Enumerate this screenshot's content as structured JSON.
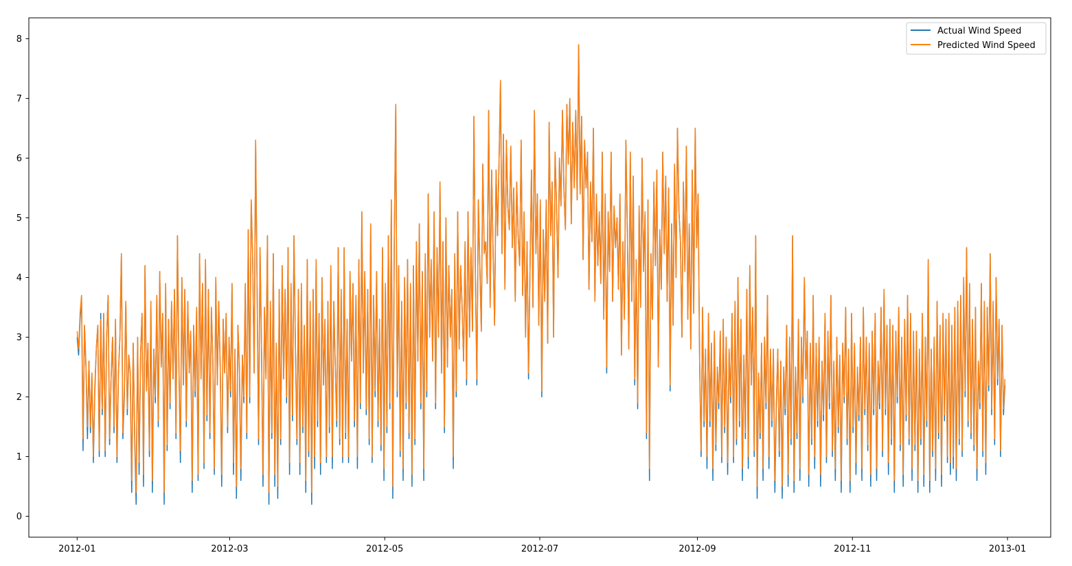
{
  "chart_data": {
    "type": "line",
    "title": "",
    "xlabel": "",
    "ylabel": "",
    "x_range": [
      "2011-12-13",
      "2013-01-18"
    ],
    "ylim": [
      -0.35,
      8.35
    ],
    "grid": false,
    "legend_position": "top-right",
    "x_ticks": [
      "2012-01",
      "2012-03",
      "2012-05",
      "2012-07",
      "2012-09",
      "2012-11",
      "2013-01"
    ],
    "y_ticks": [
      "0",
      "1",
      "2",
      "3",
      "4",
      "5",
      "6",
      "7",
      "8"
    ],
    "x_start": "2012-01-01",
    "x_end": "2012-12-31",
    "series": [
      {
        "name": "Actual Wind Speed",
        "color": "#1f77b4",
        "values": [
          3.0,
          2.7,
          3.3,
          3.7,
          1.1,
          3.2,
          2.5,
          1.3,
          2.6,
          1.4,
          2.4,
          0.9,
          2.1,
          2.8,
          3.2,
          1.0,
          3.4,
          1.7,
          3.4,
          1.0,
          3.0,
          3.7,
          1.2,
          2.3,
          3.0,
          1.4,
          3.3,
          0.9,
          2.4,
          3.0,
          4.4,
          1.3,
          2.0,
          3.6,
          1.7,
          2.7,
          2.4,
          0.4,
          2.9,
          1.3,
          0.2,
          3.0,
          0.7,
          2.7,
          3.4,
          0.5,
          4.2,
          2.1,
          2.9,
          1.0,
          3.6,
          0.4,
          2.8,
          1.9,
          3.7,
          1.5,
          4.1,
          2.5,
          3.4,
          0.2,
          3.9,
          1.1,
          3.3,
          1.8,
          3.6,
          2.3,
          3.8,
          1.3,
          4.7,
          2.5,
          0.9,
          4.0,
          2.2,
          3.8,
          1.5,
          3.6,
          2.4,
          3.1,
          0.4,
          3.2,
          2.0,
          3.5,
          0.6,
          4.4,
          2.3,
          3.9,
          0.8,
          4.3,
          1.6,
          3.8,
          1.3,
          3.5,
          2.6,
          0.7,
          4.0,
          2.2,
          3.6,
          2.5,
          0.5,
          3.3,
          2.4,
          3.4,
          1.4,
          3.0,
          2.0,
          3.9,
          0.7,
          2.8,
          0.3,
          3.2,
          2.5,
          0.6,
          2.7,
          1.9,
          3.9,
          1.3,
          4.8,
          1.9,
          5.3,
          4.3,
          2.4,
          6.3,
          3.8,
          1.2,
          4.5,
          2.8,
          0.5,
          3.5,
          2.3,
          4.7,
          0.2,
          3.6,
          1.3,
          4.4,
          0.5,
          2.9,
          0.3,
          3.8,
          1.2,
          4.2,
          2.3,
          3.8,
          1.9,
          4.5,
          0.7,
          3.9,
          1.6,
          4.7,
          2.8,
          1.2,
          3.8,
          0.7,
          3.9,
          1.4,
          3.2,
          0.4,
          4.3,
          1.0,
          3.6,
          0.2,
          3.8,
          0.8,
          4.3,
          1.5,
          3.4,
          0.7,
          4.0,
          2.2,
          3.3,
          0.9,
          3.6,
          1.4,
          4.2,
          0.8,
          3.6,
          2.5,
          1.5,
          4.5,
          1.2,
          3.8,
          0.9,
          4.5,
          1.3,
          3.3,
          0.9,
          4.1,
          2.6,
          3.9,
          1.5,
          3.7,
          0.8,
          4.3,
          1.8,
          5.1,
          2.4,
          4.1,
          1.7,
          3.8,
          1.2,
          4.9,
          0.9,
          3.7,
          2.0,
          4.1,
          1.5,
          3.3,
          1.1,
          4.5,
          0.6,
          3.9,
          1.4,
          4.7,
          1.8,
          5.3,
          0.3,
          4.6,
          6.9,
          2.0,
          4.2,
          1.0,
          3.6,
          0.6,
          4.0,
          1.8,
          4.3,
          1.3,
          3.9,
          0.5,
          4.2,
          1.2,
          4.6,
          2.6,
          4.9,
          1.8,
          4.1,
          0.6,
          4.4,
          2.0,
          5.4,
          3.0,
          4.3,
          2.6,
          5.1,
          1.8,
          4.5,
          3.0,
          5.6,
          2.4,
          4.6,
          1.4,
          5.0,
          2.5,
          4.2,
          3.0,
          3.8,
          0.8,
          4.4,
          2.0,
          5.1,
          2.8,
          4.2,
          3.5,
          2.6,
          4.6,
          2.2,
          5.1,
          3.0,
          4.5,
          3.1,
          6.7,
          4.0,
          2.2,
          5.3,
          4.2,
          3.1,
          5.9,
          4.4,
          4.6,
          3.9,
          6.8,
          3.5,
          5.8,
          4.4,
          3.2,
          5.8,
          4.7,
          5.9,
          7.3,
          4.4,
          6.4,
          3.8,
          6.3,
          5.2,
          4.8,
          6.2,
          4.5,
          5.5,
          3.6,
          5.6,
          4.7,
          4.2,
          6.3,
          3.7,
          5.1,
          3.0,
          4.6,
          2.3,
          4.1,
          5.8,
          3.5,
          6.8,
          4.4,
          5.4,
          3.2,
          5.3,
          2.0,
          4.8,
          3.6,
          5.3,
          2.9,
          6.6,
          4.7,
          5.6,
          3.0,
          6.1,
          5.2,
          4.0,
          6.0,
          5.2,
          6.8,
          5.5,
          4.8,
          6.9,
          5.9,
          7.0,
          4.9,
          6.6,
          5.5,
          6.8,
          5.3,
          7.9,
          5.4,
          6.7,
          4.3,
          6.3,
          5.5,
          6.1,
          3.8,
          5.6,
          4.6,
          6.5,
          3.6,
          5.4,
          4.2,
          5.1,
          3.9,
          6.1,
          3.3,
          5.4,
          2.4,
          5.1,
          4.1,
          6.1,
          3.6,
          5.2,
          4.5,
          5.0,
          3.8,
          5.4,
          2.7,
          4.6,
          3.3,
          6.3,
          4.8,
          2.8,
          6.1,
          3.6,
          5.7,
          2.2,
          4.3,
          1.8,
          5.2,
          3.5,
          6.0,
          4.1,
          5.1,
          1.3,
          5.3,
          0.6,
          4.4,
          3.3,
          5.6,
          4.2,
          5.8,
          2.5,
          4.8,
          3.8,
          6.1,
          4.4,
          5.7,
          3.6,
          5.5,
          2.1,
          4.9,
          3.2,
          5.9,
          4.0,
          6.5,
          5.1,
          4.6,
          3.0,
          5.6,
          4.1,
          6.2,
          3.3,
          4.9,
          2.8,
          5.8,
          3.4,
          6.5,
          4.5,
          5.4,
          2.6,
          1.0,
          3.5,
          1.5,
          2.8,
          0.8,
          3.4,
          1.5,
          2.9,
          0.6,
          3.1,
          1.1,
          2.5,
          1.8,
          3.1,
          0.9,
          3.3,
          1.4,
          3.0,
          0.7,
          2.8,
          1.9,
          3.4,
          0.9,
          3.6,
          1.2,
          4.0,
          1.5,
          3.3,
          0.6,
          2.7,
          1.3,
          3.8,
          0.8,
          4.2,
          2.2,
          3.5,
          1.0,
          4.7,
          0.3,
          2.4,
          1.3,
          2.9,
          0.6,
          3.0,
          1.8,
          3.7,
          0.8,
          2.8,
          1.5,
          2.8,
          0.4,
          1.8,
          2.8,
          1.0,
          2.6,
          0.3,
          2.5,
          1.7,
          3.2,
          0.5,
          3.0,
          1.2,
          4.7,
          0.4,
          2.5,
          1.3,
          3.3,
          0.6,
          3.0,
          1.9,
          4.0,
          2.3,
          3.1,
          0.5,
          2.9,
          1.2,
          3.7,
          0.8,
          2.9,
          1.5,
          3.0,
          0.5,
          2.6,
          1.6,
          3.4,
          0.9,
          3.1,
          1.8,
          3.7,
          1.0,
          2.6,
          0.6,
          3.0,
          1.4,
          2.7,
          0.4,
          2.9,
          1.9,
          3.5,
          1.2,
          2.8,
          0.4,
          3.4,
          1.4,
          2.9,
          0.7,
          2.5,
          1.6,
          3.0,
          0.6,
          3.5,
          1.7,
          3.0,
          1.1,
          2.9,
          0.5,
          3.1,
          1.7,
          3.4,
          0.6,
          2.6,
          1.8,
          3.5,
          1.0,
          3.8,
          1.7,
          3.2,
          0.7,
          3.3,
          1.2,
          3.2,
          0.4,
          3.1,
          1.9,
          3.5,
          1.1,
          3.0,
          0.5,
          3.3,
          1.6,
          3.7,
          1.2,
          3.4,
          0.6,
          3.1,
          1.1,
          3.1,
          0.4,
          2.8,
          1.2,
          3.4,
          0.5,
          3.0,
          1.5,
          4.3,
          0.4,
          2.8,
          1.0,
          3.0,
          0.6,
          3.6,
          1.3,
          3.2,
          0.5,
          3.4,
          1.6,
          3.3,
          0.9,
          3.4,
          0.7,
          3.2,
          0.8,
          3.5,
          0.6,
          3.6,
          1.2,
          3.7,
          1.0,
          4.0,
          2.0,
          4.5,
          1.5,
          3.9,
          1.3,
          3.3,
          1.1,
          3.5,
          0.6,
          2.6,
          1.8,
          3.9,
          1.0,
          3.6,
          0.7,
          3.5,
          2.1,
          4.4,
          1.7,
          3.6,
          1.2,
          4.0,
          2.2,
          3.3,
          1.0,
          3.2,
          1.7,
          2.2
        ]
      },
      {
        "name": "Predicted Wind Speed",
        "color": "#ff7f0e",
        "values": [
          3.1,
          2.8,
          3.4,
          3.7,
          1.3,
          3.2,
          2.5,
          1.5,
          2.6,
          1.5,
          2.4,
          1.0,
          2.2,
          2.8,
          3.2,
          1.1,
          3.3,
          1.8,
          3.4,
          1.1,
          3.0,
          3.7,
          1.3,
          2.3,
          3.0,
          1.5,
          3.3,
          1.0,
          2.4,
          3.0,
          4.4,
          1.4,
          2.1,
          3.6,
          1.8,
          2.7,
          2.4,
          0.6,
          2.9,
          1.4,
          0.4,
          3.0,
          0.9,
          2.7,
          3.4,
          0.7,
          4.2,
          2.1,
          2.9,
          1.1,
          3.6,
          0.6,
          2.8,
          2.0,
          3.7,
          1.6,
          4.1,
          2.5,
          3.4,
          0.4,
          3.9,
          1.2,
          3.3,
          1.9,
          3.6,
          2.3,
          3.8,
          1.4,
          4.7,
          2.5,
          1.1,
          4.0,
          2.2,
          3.8,
          1.6,
          3.6,
          2.4,
          3.1,
          0.6,
          3.2,
          2.1,
          3.5,
          0.7,
          4.4,
          2.3,
          3.9,
          0.9,
          4.3,
          1.7,
          3.8,
          1.4,
          3.5,
          2.6,
          0.8,
          4.0,
          2.2,
          3.6,
          2.5,
          0.7,
          3.3,
          2.4,
          3.4,
          1.5,
          3.0,
          2.1,
          3.9,
          0.9,
          2.8,
          0.5,
          3.2,
          2.5,
          0.8,
          2.7,
          2.0,
          3.9,
          1.4,
          4.8,
          2.0,
          5.3,
          4.3,
          2.4,
          6.3,
          3.8,
          1.3,
          4.5,
          2.8,
          0.7,
          3.5,
          2.3,
          4.7,
          0.4,
          3.6,
          1.4,
          4.4,
          0.7,
          2.9,
          0.5,
          3.8,
          1.3,
          4.2,
          2.3,
          3.8,
          2.0,
          4.5,
          0.9,
          3.9,
          1.7,
          4.7,
          2.8,
          1.3,
          3.8,
          0.9,
          3.9,
          1.5,
          3.2,
          0.6,
          4.3,
          1.1,
          3.6,
          0.4,
          3.8,
          1.0,
          4.3,
          1.6,
          3.4,
          0.9,
          4.0,
          2.2,
          3.3,
          1.0,
          3.6,
          1.5,
          4.2,
          1.0,
          3.6,
          2.5,
          1.6,
          4.5,
          1.3,
          3.8,
          1.0,
          4.5,
          1.4,
          3.3,
          1.0,
          4.1,
          2.6,
          3.9,
          1.6,
          3.7,
          1.0,
          4.3,
          1.9,
          5.1,
          2.4,
          4.1,
          1.8,
          3.8,
          1.3,
          4.9,
          1.0,
          3.7,
          2.1,
          4.1,
          1.6,
          3.3,
          1.2,
          4.5,
          0.8,
          3.9,
          1.5,
          4.7,
          1.9,
          5.3,
          0.5,
          4.6,
          6.9,
          2.1,
          4.2,
          1.1,
          3.6,
          0.8,
          4.0,
          1.9,
          4.3,
          1.4,
          3.9,
          0.7,
          4.2,
          1.3,
          4.6,
          2.6,
          4.9,
          1.9,
          4.1,
          0.8,
          4.4,
          2.1,
          5.4,
          3.0,
          4.3,
          2.6,
          5.1,
          1.9,
          4.5,
          3.0,
          5.6,
          2.4,
          4.6,
          1.5,
          5.0,
          2.5,
          4.2,
          3.0,
          3.8,
          1.0,
          4.4,
          2.1,
          5.1,
          2.8,
          4.2,
          3.5,
          2.6,
          4.6,
          2.3,
          5.1,
          3.0,
          4.5,
          3.1,
          6.7,
          4.0,
          2.3,
          5.3,
          4.2,
          3.1,
          5.9,
          4.4,
          4.6,
          3.9,
          6.8,
          3.5,
          5.8,
          4.4,
          3.2,
          5.8,
          4.7,
          5.9,
          7.3,
          4.4,
          6.4,
          3.8,
          6.3,
          5.2,
          4.8,
          6.2,
          4.5,
          5.5,
          3.6,
          5.6,
          4.7,
          4.2,
          6.3,
          3.7,
          5.1,
          3.0,
          4.6,
          2.4,
          4.1,
          5.8,
          3.5,
          6.8,
          4.4,
          5.4,
          3.2,
          5.3,
          2.1,
          4.8,
          3.6,
          5.3,
          2.9,
          6.6,
          4.7,
          5.6,
          3.0,
          6.1,
          5.2,
          4.0,
          6.0,
          5.2,
          6.8,
          5.5,
          4.8,
          6.9,
          5.9,
          7.0,
          4.9,
          6.6,
          5.5,
          6.8,
          5.3,
          7.9,
          5.4,
          6.7,
          4.3,
          6.3,
          5.5,
          6.1,
          3.8,
          5.6,
          4.6,
          6.5,
          3.6,
          5.4,
          4.2,
          5.1,
          3.9,
          6.1,
          3.3,
          5.4,
          2.5,
          5.1,
          4.1,
          6.1,
          3.6,
          5.2,
          4.5,
          5.0,
          3.8,
          5.4,
          2.7,
          4.6,
          3.3,
          6.3,
          4.8,
          2.8,
          6.1,
          3.6,
          5.7,
          2.3,
          4.3,
          1.9,
          5.2,
          3.5,
          6.0,
          4.1,
          5.1,
          1.4,
          5.3,
          0.8,
          4.4,
          3.3,
          5.6,
          4.2,
          5.8,
          2.5,
          4.8,
          3.8,
          6.1,
          4.4,
          5.7,
          3.6,
          5.5,
          2.2,
          4.9,
          3.2,
          5.9,
          4.0,
          6.5,
          5.1,
          4.6,
          3.0,
          5.6,
          4.1,
          6.2,
          3.3,
          4.9,
          2.8,
          5.8,
          3.4,
          6.5,
          4.5,
          5.4,
          2.6,
          1.1,
          3.5,
          1.6,
          2.8,
          1.0,
          3.4,
          1.6,
          2.9,
          0.8,
          3.1,
          1.2,
          2.5,
          1.9,
          3.1,
          1.0,
          3.3,
          1.5,
          3.0,
          0.9,
          2.8,
          2.0,
          3.4,
          1.0,
          3.6,
          1.3,
          4.0,
          1.6,
          3.3,
          0.8,
          2.7,
          1.4,
          3.8,
          1.0,
          4.2,
          2.2,
          3.5,
          1.1,
          4.7,
          0.5,
          2.4,
          1.4,
          2.9,
          0.8,
          3.0,
          1.9,
          3.7,
          1.0,
          2.8,
          1.6,
          2.8,
          0.6,
          1.9,
          2.8,
          1.1,
          2.6,
          0.5,
          2.5,
          1.8,
          3.2,
          0.7,
          3.0,
          1.3,
          4.7,
          0.6,
          2.5,
          1.4,
          3.3,
          0.8,
          3.0,
          2.0,
          4.0,
          2.3,
          3.1,
          0.7,
          2.9,
          1.3,
          3.7,
          1.0,
          2.9,
          1.6,
          3.0,
          0.7,
          2.6,
          1.7,
          3.4,
          1.0,
          3.1,
          1.9,
          3.7,
          1.1,
          2.6,
          0.8,
          3.0,
          1.5,
          2.7,
          0.6,
          2.9,
          2.0,
          3.5,
          1.3,
          2.8,
          0.6,
          3.4,
          1.5,
          2.9,
          0.9,
          2.5,
          1.7,
          3.0,
          0.8,
          3.5,
          1.8,
          3.0,
          1.2,
          2.9,
          0.7,
          3.1,
          1.8,
          3.4,
          0.8,
          2.6,
          1.9,
          3.5,
          1.1,
          3.8,
          1.8,
          3.2,
          0.9,
          3.3,
          1.3,
          3.2,
          0.6,
          3.1,
          2.0,
          3.5,
          1.2,
          3.0,
          0.7,
          3.3,
          1.7,
          3.7,
          1.3,
          3.4,
          0.8,
          3.1,
          1.2,
          3.1,
          0.6,
          2.8,
          1.3,
          3.4,
          0.7,
          3.0,
          1.6,
          4.3,
          0.6,
          2.8,
          1.1,
          3.0,
          0.8,
          3.6,
          1.4,
          3.2,
          0.7,
          3.4,
          1.7,
          3.3,
          1.0,
          3.4,
          0.9,
          3.2,
          1.0,
          3.5,
          0.8,
          3.6,
          1.3,
          3.7,
          1.1,
          4.0,
          2.1,
          4.5,
          1.6,
          3.9,
          1.4,
          3.3,
          1.2,
          3.5,
          0.8,
          2.6,
          1.9,
          3.9,
          1.1,
          3.6,
          0.9,
          3.5,
          2.2,
          4.4,
          1.8,
          3.6,
          1.3,
          4.0,
          2.3,
          3.3,
          1.1,
          3.2,
          1.8,
          2.3
        ]
      }
    ]
  }
}
